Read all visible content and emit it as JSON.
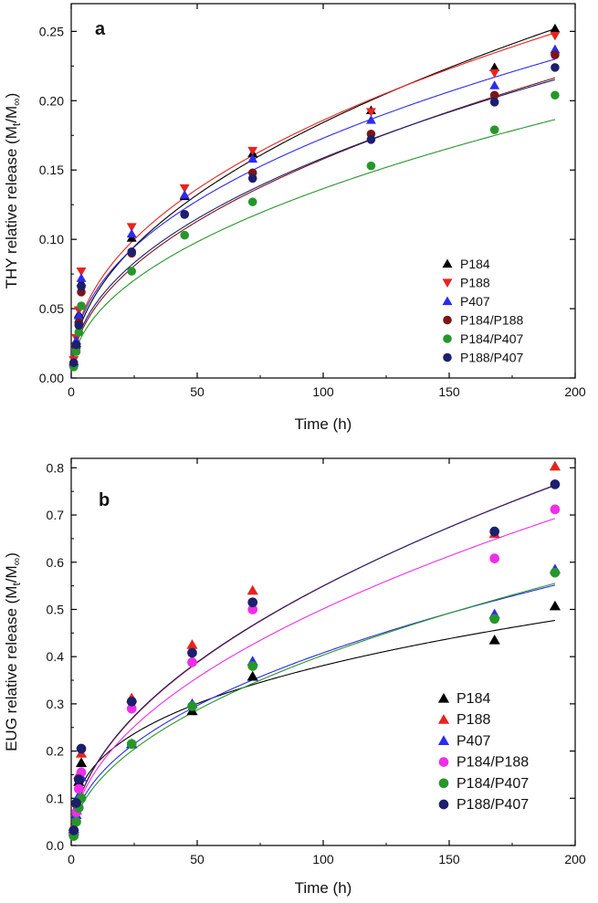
{
  "figure": {
    "colors": {
      "black": "#000000",
      "red": "#e8231e",
      "blue": "#2b2bf0",
      "darkred": "#7a1616",
      "green": "#27962a",
      "navy": "#1b1f6e",
      "magenta": "#ee2ee8"
    }
  },
  "chart_data": [
    {
      "panel": "a",
      "type": "scatter",
      "title": "",
      "xlabel": "Time (h)",
      "ylabel_main": "THY relative release (M",
      "ylabel_sub1": "t",
      "ylabel_mid": "/M",
      "ylabel_sub2": "∞",
      "ylabel_end": ")",
      "xlim": [
        0,
        200
      ],
      "ylim": [
        0,
        0.27
      ],
      "xticks": [
        0,
        50,
        100,
        150,
        200
      ],
      "xtick_labels": [
        "0",
        "50",
        "100",
        "150",
        "200"
      ],
      "yticks": [
        0,
        0.05,
        0.1,
        0.15,
        0.2,
        0.25
      ],
      "ytick_labels": [
        "0.00",
        "0.05",
        "0.10",
        "0.15",
        "0.20",
        "0.25"
      ],
      "legend_position": "bottom-right",
      "series": [
        {
          "name": "P184",
          "marker": "triangle-up",
          "color": "#000000",
          "x": [
            1,
            2,
            3,
            4,
            24,
            45,
            72,
            119,
            168,
            192
          ],
          "y": [
            0.012,
            0.025,
            0.046,
            0.069,
            0.101,
            0.131,
            0.162,
            0.193,
            0.224,
            0.252
          ],
          "fit": {
            "a": 0.02025,
            "n": 0.4795
          }
        },
        {
          "name": "P188",
          "marker": "triangle-down",
          "color": "#e8231e",
          "x": [
            1,
            2,
            3,
            4,
            24,
            45,
            72,
            119,
            168,
            192
          ],
          "y": [
            0.013,
            0.029,
            0.049,
            0.077,
            0.109,
            0.137,
            0.164,
            0.192,
            0.22,
            0.247
          ],
          "fit": {
            "a": 0.02364,
            "n": 0.4478
          }
        },
        {
          "name": "P407",
          "marker": "triangle-up",
          "color": "#2b2bf0",
          "x": [
            1,
            2,
            3,
            4,
            24,
            45,
            72,
            119,
            168,
            192
          ],
          "y": [
            0.011,
            0.027,
            0.045,
            0.072,
            0.104,
            0.132,
            0.158,
            0.186,
            0.211,
            0.237
          ],
          "fit": {
            "a": 0.02315,
            "n": 0.4367
          }
        },
        {
          "name": "P184/P188",
          "marker": "circle",
          "color": "#7a1616",
          "x": [
            1,
            2,
            3,
            4,
            24,
            45,
            72,
            119,
            168,
            192
          ],
          "y": [
            0.01,
            0.022,
            0.04,
            0.062,
            0.09,
            0.118,
            0.148,
            0.176,
            0.204,
            0.233
          ],
          "fit": {
            "a": 0.01705,
            "n": 0.4834
          }
        },
        {
          "name": "P184/P407",
          "marker": "circle",
          "color": "#27962a",
          "x": [
            1,
            2,
            3,
            4,
            24,
            45,
            72,
            119,
            168,
            192
          ],
          "y": [
            0.008,
            0.019,
            0.033,
            0.052,
            0.077,
            0.103,
            0.127,
            0.153,
            0.179,
            0.204
          ],
          "fit": {
            "a": 0.01519,
            "n": 0.4769
          }
        },
        {
          "name": "P188/P407",
          "marker": "circle",
          "color": "#1b1f6e",
          "x": [
            1,
            2,
            3,
            4,
            24,
            45,
            72,
            119,
            168,
            192
          ],
          "y": [
            0.011,
            0.024,
            0.038,
            0.066,
            0.091,
            0.118,
            0.144,
            0.172,
            0.199,
            0.224
          ],
          "fit": {
            "a": 0.01852,
            "n": 0.4665
          }
        }
      ]
    },
    {
      "panel": "b",
      "type": "scatter",
      "title": "",
      "xlabel": "Time (h)",
      "ylabel_main": "EUG relative release (M",
      "ylabel_sub1": "t",
      "ylabel_mid": "/M",
      "ylabel_sub2": "∞",
      "ylabel_end": ")",
      "xlim": [
        0,
        200
      ],
      "ylim": [
        0,
        0.82
      ],
      "xticks": [
        0,
        50,
        100,
        150,
        200
      ],
      "xtick_labels": [
        "0",
        "50",
        "100",
        "150",
        "200"
      ],
      "yticks": [
        0,
        0.1,
        0.2,
        0.3,
        0.4,
        0.5,
        0.6,
        0.7,
        0.8
      ],
      "ytick_labels": [
        "0.0",
        "0.1",
        "0.2",
        "0.3",
        "0.4",
        "0.5",
        "0.6",
        "0.7",
        "0.8"
      ],
      "legend_position": "bottom-right",
      "series": [
        {
          "name": "P184",
          "marker": "triangle-up",
          "color": "#000000",
          "x": [
            1,
            2,
            3,
            4,
            24,
            48,
            72,
            168,
            192
          ],
          "y": [
            0.035,
            0.075,
            0.135,
            0.175,
            0.215,
            0.285,
            0.358,
            0.435,
            0.507
          ],
          "fit": {
            "a": 0.0785,
            "n": 0.3431
          }
        },
        {
          "name": "P188",
          "marker": "triangle-up",
          "color": "#e8231e",
          "x": [
            1,
            2,
            3,
            4,
            24,
            48,
            72,
            168,
            192
          ],
          "y": [
            0.04,
            0.09,
            0.15,
            0.195,
            0.312,
            0.425,
            0.54,
            0.66,
            0.803
          ],
          "fit": {
            "a": 0.0537,
            "n": 0.5049
          }
        },
        {
          "name": "P407",
          "marker": "triangle-up",
          "color": "#2b2bf0",
          "x": [
            1,
            2,
            3,
            4,
            24,
            48,
            72,
            168,
            192
          ],
          "y": [
            0.03,
            0.065,
            0.105,
            0.145,
            0.215,
            0.3,
            0.39,
            0.49,
            0.585
          ],
          "fit": {
            "a": 0.0487,
            "n": 0.4616
          }
        },
        {
          "name": "P184/P188",
          "marker": "circle",
          "color": "#ee2ee8",
          "x": [
            1,
            2,
            3,
            4,
            24,
            48,
            72,
            168,
            192
          ],
          "y": [
            0.025,
            0.07,
            0.12,
            0.155,
            0.29,
            0.388,
            0.5,
            0.608,
            0.712
          ],
          "fit": {
            "a": 0.051,
            "n": 0.4962
          }
        },
        {
          "name": "P184/P407",
          "marker": "circle",
          "color": "#27962a",
          "x": [
            1,
            2,
            3,
            4,
            24,
            48,
            72,
            168,
            192
          ],
          "y": [
            0.02,
            0.05,
            0.08,
            0.1,
            0.215,
            0.295,
            0.38,
            0.48,
            0.578
          ],
          "fit": {
            "a": 0.0421,
            "n": 0.4906
          }
        },
        {
          "name": "P188/P407",
          "marker": "circle",
          "color": "#1b1f6e",
          "x": [
            1,
            2,
            3,
            4,
            24,
            48,
            72,
            168,
            192
          ],
          "y": [
            0.032,
            0.09,
            0.14,
            0.205,
            0.305,
            0.408,
            0.515,
            0.665,
            0.765
          ],
          "fit": {
            "a": 0.0545,
            "n": 0.5019
          }
        }
      ]
    }
  ]
}
